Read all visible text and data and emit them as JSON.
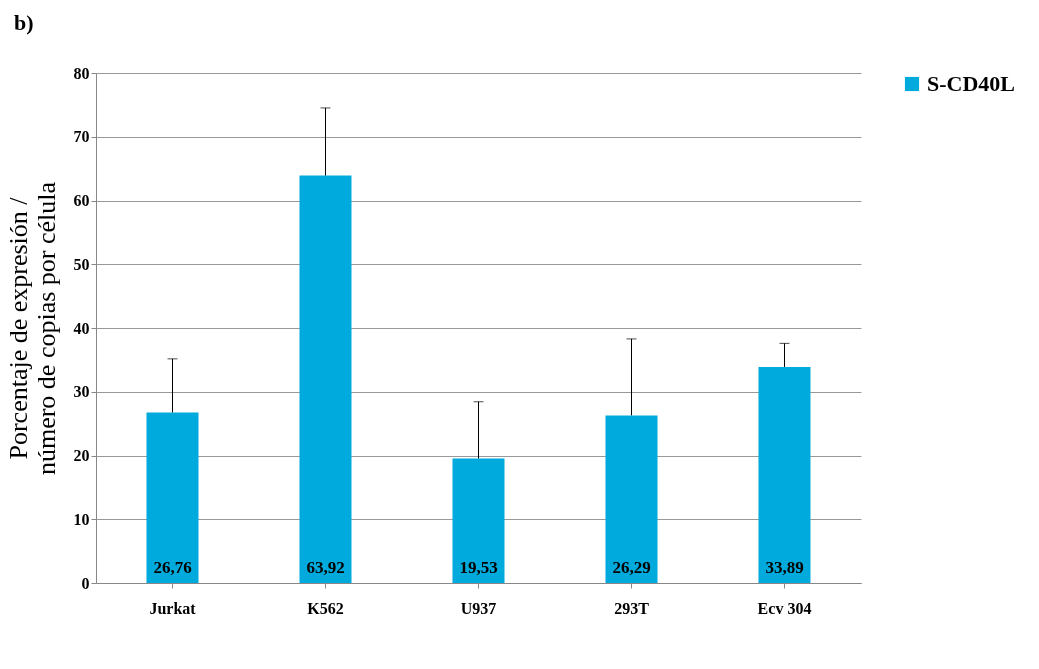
{
  "chart_data": {
    "type": "bar",
    "annotations": [
      "b)"
    ],
    "ylabel": "Porcentaje  de expresión /\nnúmero de copias por célula",
    "categories": [
      "Jurkat",
      "K562",
      "U937",
      "293T",
      "Ecv 304"
    ],
    "series": [
      {
        "name": "S-CD40L",
        "color": "#00aadc",
        "values": [
          26.76,
          63.92,
          19.53,
          26.29,
          33.89
        ],
        "errors": [
          8.4,
          10.6,
          8.9,
          12,
          3.7
        ],
        "value_labels": [
          "26,76",
          "63,92",
          "19,53",
          "26,29",
          "33,89"
        ]
      }
    ],
    "ylim": [
      0,
      80
    ],
    "yticks": [
      0,
      10,
      20,
      30,
      40,
      50,
      60,
      70,
      80
    ],
    "grid": "y",
    "legend": "right"
  }
}
